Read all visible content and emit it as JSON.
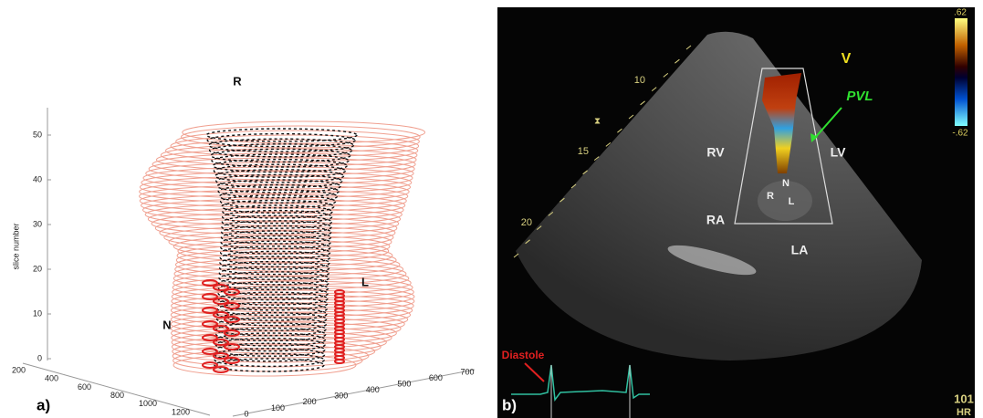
{
  "panel_a": {
    "label": "a)",
    "z_axis": {
      "title": "slice number",
      "ticks": [
        0,
        10,
        20,
        30,
        40,
        50
      ]
    },
    "x_axis": {
      "ticks": [
        200,
        400,
        600,
        800,
        1000,
        1200
      ]
    },
    "y_axis": {
      "ticks": [
        0,
        100,
        200,
        300,
        400,
        500,
        600,
        700
      ]
    },
    "annotations": {
      "r": "R",
      "l": "L",
      "n": "N"
    }
  },
  "panel_b": {
    "label": "b)",
    "depth_marks": [
      10,
      15,
      20
    ],
    "labels": {
      "rv": "RV",
      "lv": "LV",
      "ra": "RA",
      "la": "LA",
      "n": "N",
      "r": "R",
      "l": "L"
    },
    "pvl": "PVL",
    "mode": "V",
    "scale": {
      "top": ".62",
      "bottom": "-.62"
    },
    "diastole": "Diastole",
    "hr": {
      "value": "101",
      "unit": "HR"
    }
  }
}
